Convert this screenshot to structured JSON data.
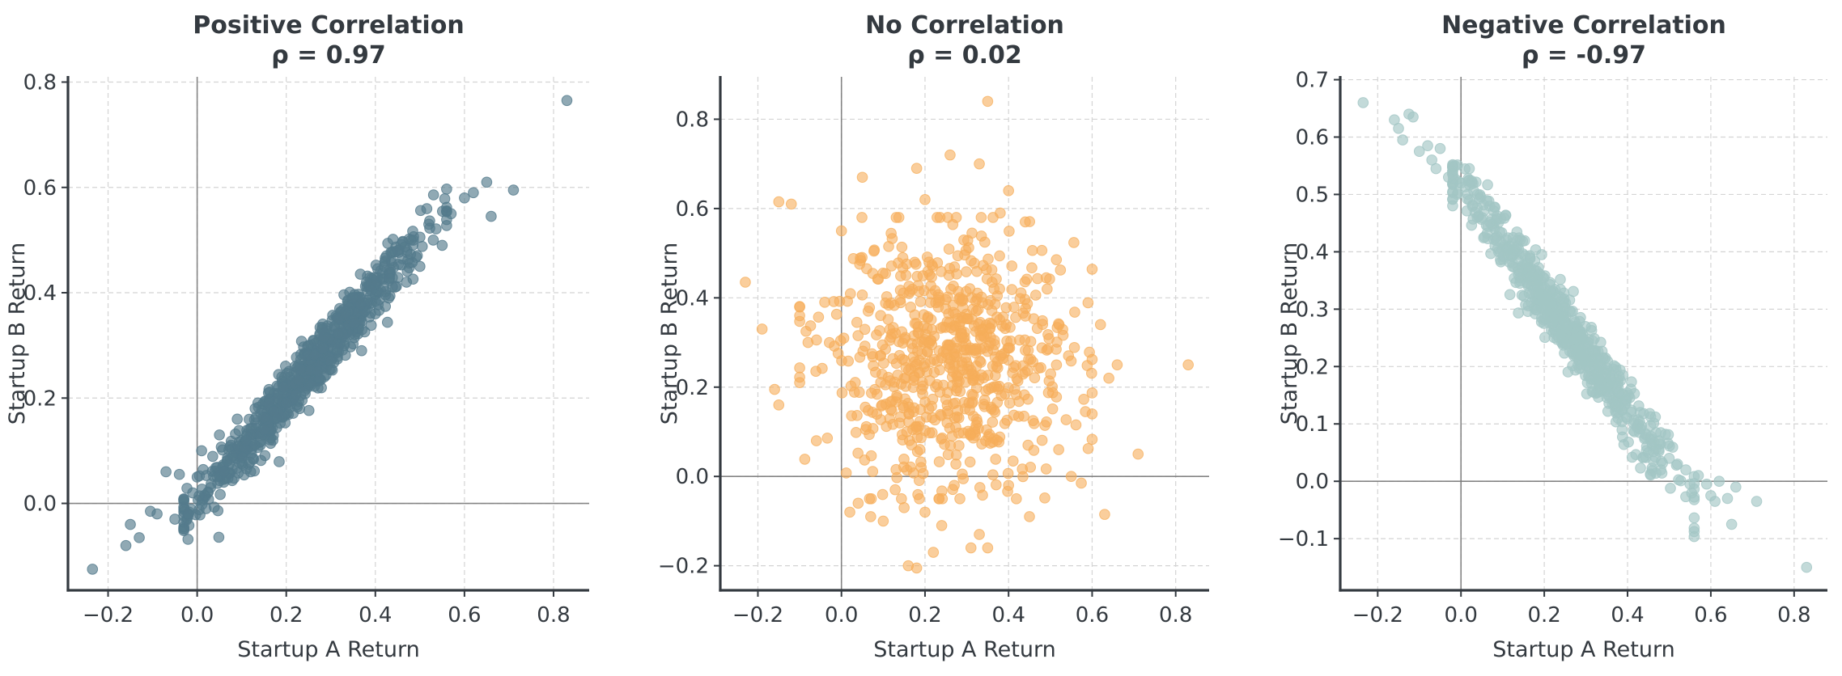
{
  "chart_data": [
    {
      "type": "scatter",
      "title": "Positive Correlation",
      "subtitle": "ρ = 0.97",
      "xlabel": "Startup A Return",
      "ylabel": "Startup B Return",
      "xlim": [
        -0.29,
        0.88
      ],
      "ylim": [
        -0.165,
        0.81
      ],
      "xticks": [
        -0.2,
        0.0,
        0.2,
        0.4,
        0.6,
        0.8
      ],
      "xtick_labels": [
        "−0.2",
        "0.0",
        "0.2",
        "0.4",
        "0.6",
        "0.8"
      ],
      "yticks": [
        0.0,
        0.2,
        0.4,
        0.6,
        0.8
      ],
      "ytick_labels": [
        "0.0",
        "0.2",
        "0.4",
        "0.6",
        "0.8"
      ],
      "grid": true,
      "reference_lines": {
        "x": 0,
        "y": 0
      },
      "color": "#547b8c",
      "point_opacity": 0.65,
      "points": [
        [
          -0.235,
          -0.125
        ],
        [
          -0.16,
          -0.08
        ],
        [
          -0.15,
          -0.04
        ],
        [
          -0.13,
          -0.065
        ],
        [
          -0.105,
          -0.015
        ],
        [
          -0.09,
          -0.02
        ],
        [
          -0.07,
          0.06
        ],
        [
          -0.05,
          -0.03
        ],
        [
          -0.04,
          0.055
        ],
        [
          -0.02,
          -0.02
        ],
        [
          -0.01,
          0.02
        ],
        [
          0.0,
          0.05
        ],
        [
          0.01,
          0.1
        ],
        [
          0.02,
          -0.01
        ],
        [
          0.03,
          0.03
        ],
        [
          0.05,
          0.13
        ],
        [
          0.06,
          0.06
        ],
        [
          0.08,
          0.09
        ],
        [
          0.09,
          0.16
        ],
        [
          0.11,
          0.12
        ],
        [
          0.12,
          0.06
        ],
        [
          0.13,
          0.18
        ],
        [
          0.15,
          0.14
        ],
        [
          0.16,
          0.21
        ],
        [
          0.17,
          0.12
        ],
        [
          0.19,
          0.24
        ],
        [
          0.2,
          0.19
        ],
        [
          0.22,
          0.26
        ],
        [
          0.23,
          0.18
        ],
        [
          0.25,
          0.3
        ],
        [
          0.27,
          0.25
        ],
        [
          0.28,
          0.33
        ],
        [
          0.3,
          0.27
        ],
        [
          0.32,
          0.37
        ],
        [
          0.33,
          0.3
        ],
        [
          0.35,
          0.39
        ],
        [
          0.37,
          0.33
        ],
        [
          0.38,
          0.42
        ],
        [
          0.4,
          0.36
        ],
        [
          0.42,
          0.45
        ],
        [
          0.43,
          0.39
        ],
        [
          0.45,
          0.48
        ],
        [
          0.47,
          0.42
        ],
        [
          0.48,
          0.5
        ],
        [
          0.5,
          0.45
        ],
        [
          0.52,
          0.53
        ],
        [
          0.53,
          0.5
        ],
        [
          0.55,
          0.49
        ],
        [
          0.57,
          0.55
        ],
        [
          0.6,
          0.58
        ],
        [
          0.62,
          0.59
        ],
        [
          0.65,
          0.61
        ],
        [
          0.66,
          0.545
        ],
        [
          0.71,
          0.595
        ],
        [
          0.83,
          0.765
        ]
      ],
      "cloud": {
        "n": 720,
        "x_mean": 0.25,
        "x_sd": 0.13,
        "slope": 0.99,
        "intercept": 0.005,
        "noise_sd": 0.028,
        "x_range": [
          -0.03,
          0.56
        ]
      }
    },
    {
      "type": "scatter",
      "title": "No Correlation",
      "subtitle": "ρ = 0.02",
      "xlabel": "Startup A Return",
      "ylabel": "Startup B Return",
      "xlim": [
        -0.29,
        0.88
      ],
      "ylim": [
        -0.255,
        0.895
      ],
      "xticks": [
        -0.2,
        0.0,
        0.2,
        0.4,
        0.6,
        0.8
      ],
      "xtick_labels": [
        "−0.2",
        "0.0",
        "0.2",
        "0.4",
        "0.6",
        "0.8"
      ],
      "yticks": [
        -0.2,
        0.0,
        0.2,
        0.4,
        0.6,
        0.8
      ],
      "ytick_labels": [
        "−0.2",
        "0.0",
        "0.2",
        "0.4",
        "0.6",
        "0.8"
      ],
      "grid": true,
      "reference_lines": {
        "x": 0,
        "y": 0
      },
      "color": "#f6ad5a",
      "point_opacity": 0.6,
      "points": [
        [
          -0.23,
          0.435
        ],
        [
          -0.19,
          0.33
        ],
        [
          -0.15,
          0.615
        ],
        [
          -0.12,
          0.61
        ],
        [
          -0.16,
          0.195
        ],
        [
          -0.15,
          0.16
        ],
        [
          -0.1,
          0.36
        ],
        [
          -0.08,
          0.3
        ],
        [
          -0.06,
          0.08
        ],
        [
          -0.04,
          0.39
        ],
        [
          0.0,
          0.55
        ],
        [
          0.05,
          0.67
        ],
        [
          0.02,
          -0.08
        ],
        [
          0.04,
          -0.06
        ],
        [
          0.07,
          -0.09
        ],
        [
          0.1,
          -0.1
        ],
        [
          0.15,
          -0.07
        ],
        [
          0.16,
          -0.2
        ],
        [
          0.18,
          -0.205
        ],
        [
          0.2,
          -0.08
        ],
        [
          0.22,
          -0.17
        ],
        [
          0.24,
          -0.11
        ],
        [
          0.27,
          -0.02
        ],
        [
          0.31,
          -0.16
        ],
        [
          0.33,
          -0.13
        ],
        [
          0.35,
          -0.16
        ],
        [
          0.4,
          -0.02
        ],
        [
          0.45,
          -0.09
        ],
        [
          0.52,
          0.06
        ],
        [
          0.55,
          0.0
        ],
        [
          0.63,
          -0.085
        ],
        [
          0.6,
          0.14
        ],
        [
          0.62,
          0.34
        ],
        [
          0.64,
          0.22
        ],
        [
          0.66,
          0.25
        ],
        [
          0.71,
          0.05
        ],
        [
          0.83,
          0.25
        ],
        [
          0.35,
          0.84
        ],
        [
          0.26,
          0.72
        ],
        [
          0.33,
          0.7
        ],
        [
          0.18,
          0.69
        ],
        [
          0.4,
          0.64
        ],
        [
          0.2,
          0.62
        ],
        [
          0.38,
          0.59
        ],
        [
          0.44,
          0.57
        ]
      ],
      "cloud": {
        "n": 720,
        "x_mean": 0.25,
        "x_sd": 0.15,
        "y_mean": 0.26,
        "y_sd": 0.145,
        "x_range": [
          -0.1,
          0.6
        ],
        "y_range": [
          -0.05,
          0.58
        ]
      }
    },
    {
      "type": "scatter",
      "title": "Negative Correlation",
      "subtitle": "ρ = -0.97",
      "xlabel": "Startup A Return",
      "ylabel": "Startup B Return",
      "xlim": [
        -0.29,
        0.88
      ],
      "ylim": [
        -0.19,
        0.705
      ],
      "xticks": [
        -0.2,
        0.0,
        0.2,
        0.4,
        0.6,
        0.8
      ],
      "xtick_labels": [
        "−0.2",
        "0.0",
        "0.2",
        "0.4",
        "0.6",
        "0.8"
      ],
      "yticks": [
        -0.1,
        0.0,
        0.1,
        0.2,
        0.3,
        0.4,
        0.5,
        0.6,
        0.7
      ],
      "ytick_labels": [
        "−0.1",
        "0.0",
        "0.1",
        "0.2",
        "0.3",
        "0.4",
        "0.5",
        "0.6",
        "0.7"
      ],
      "grid": true,
      "reference_lines": {
        "x": 0,
        "y": 0
      },
      "color": "#a3c6c4",
      "point_opacity": 0.65,
      "points": [
        [
          -0.235,
          0.66
        ],
        [
          -0.16,
          0.63
        ],
        [
          -0.15,
          0.615
        ],
        [
          -0.14,
          0.595
        ],
        [
          -0.125,
          0.64
        ],
        [
          -0.115,
          0.635
        ],
        [
          -0.1,
          0.575
        ],
        [
          -0.08,
          0.585
        ],
        [
          -0.07,
          0.56
        ],
        [
          -0.06,
          0.545
        ],
        [
          -0.05,
          0.58
        ],
        [
          -0.03,
          0.53
        ],
        [
          -0.02,
          0.55
        ],
        [
          0.0,
          0.52
        ],
        [
          0.02,
          0.545
        ],
        [
          0.04,
          0.5
        ],
        [
          0.45,
          0.05
        ],
        [
          0.48,
          0.02
        ],
        [
          0.5,
          0.04
        ],
        [
          0.52,
          0.03
        ],
        [
          0.54,
          0.02
        ],
        [
          0.55,
          -0.005
        ],
        [
          0.57,
          0.01
        ],
        [
          0.59,
          -0.005
        ],
        [
          0.6,
          -0.025
        ],
        [
          0.62,
          0.0
        ],
        [
          0.61,
          -0.035
        ],
        [
          0.64,
          -0.03
        ],
        [
          0.65,
          -0.075
        ],
        [
          0.66,
          -0.01
        ],
        [
          0.71,
          -0.035
        ],
        [
          0.83,
          -0.15
        ]
      ],
      "cloud": {
        "n": 720,
        "x_mean": 0.25,
        "x_sd": 0.13,
        "slope": -0.99,
        "intercept": 0.515,
        "noise_sd": 0.028,
        "x_range": [
          -0.02,
          0.56
        ]
      }
    }
  ]
}
